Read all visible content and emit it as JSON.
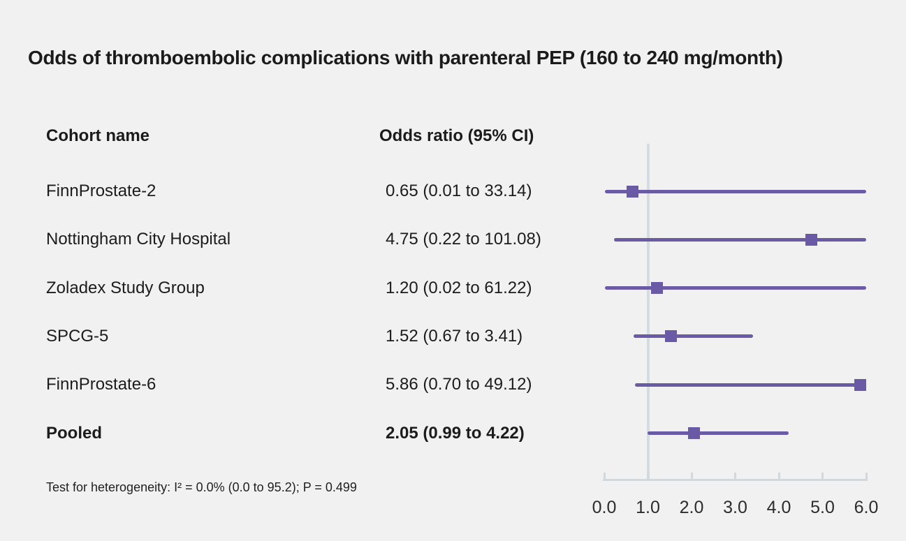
{
  "title": "Odds of thromboembolic complications with parenteral PEP (160 to 240 mg/month)",
  "columns": {
    "cohort": "Cohort name",
    "odds_ratio": "Odds ratio (95% CI)"
  },
  "footnote": "Test for heterogeneity: I² = 0.0% (0.0 to 95.2); P = 0.499",
  "chart_data": {
    "type": "forest",
    "title": "Odds of thromboembolic complications with parenteral PEP (160 to 240 mg/month)",
    "xlim": [
      0.0,
      6.0
    ],
    "x_ticks": [
      "0.0",
      "1.0",
      "2.0",
      "3.0",
      "4.0",
      "5.0",
      "6.0"
    ],
    "reference_value": 1.0,
    "clip_max": 6.0,
    "grid": false,
    "rows": [
      {
        "cohort": "FinnProstate-2",
        "or_label": "0.65 (0.01 to 33.14)",
        "estimate": 0.65,
        "ci_low": 0.01,
        "ci_high": 33.14,
        "bold": false
      },
      {
        "cohort": "Nottingham City Hospital",
        "or_label": "4.75 (0.22 to 101.08)",
        "estimate": 4.75,
        "ci_low": 0.22,
        "ci_high": 101.08,
        "bold": false
      },
      {
        "cohort": "Zoladex Study Group",
        "or_label": "1.20 (0.02 to 61.22)",
        "estimate": 1.2,
        "ci_low": 0.02,
        "ci_high": 61.22,
        "bold": false
      },
      {
        "cohort": "SPCG-5",
        "or_label": "1.52 (0.67 to 3.41)",
        "estimate": 1.52,
        "ci_low": 0.67,
        "ci_high": 3.41,
        "bold": false
      },
      {
        "cohort": "FinnProstate-6",
        "or_label": "5.86 (0.70 to 49.12)",
        "estimate": 5.86,
        "ci_low": 0.7,
        "ci_high": 49.12,
        "bold": false
      },
      {
        "cohort": "Pooled",
        "or_label": "2.05 (0.99 to 4.22)",
        "estimate": 2.05,
        "ci_low": 0.99,
        "ci_high": 4.22,
        "bold": true
      }
    ],
    "colors": {
      "marker": "#6a59a4",
      "ci_line": "#6b5ba6",
      "reference_line": "#d6dbe0",
      "axis": "#d3d8dd",
      "text": "#1c1c1c",
      "background": "#f2f1f1"
    }
  }
}
